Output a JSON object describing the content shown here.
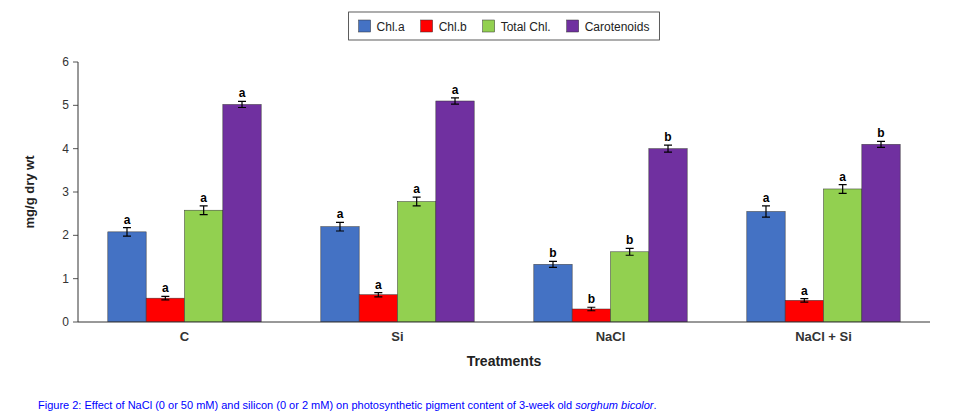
{
  "chart_data": {
    "type": "bar",
    "categories": [
      "C",
      "Si",
      "NaCl",
      "NaCl + Si"
    ],
    "series": [
      {
        "name": "Chl.a",
        "color": "#4472C4",
        "values": [
          2.08,
          2.2,
          1.33,
          2.55
        ],
        "errors": [
          0.1,
          0.1,
          0.07,
          0.13
        ],
        "letters": [
          "a",
          "a",
          "b",
          "a"
        ]
      },
      {
        "name": "Chl.b",
        "color": "#FF0000",
        "values": [
          0.55,
          0.63,
          0.3,
          0.5
        ],
        "errors": [
          0.04,
          0.05,
          0.04,
          0.04
        ],
        "letters": [
          "a",
          "a",
          "b",
          "a"
        ]
      },
      {
        "name": "Total Chl.",
        "color": "#92D050",
        "values": [
          2.58,
          2.78,
          1.62,
          3.07
        ],
        "errors": [
          0.1,
          0.1,
          0.08,
          0.1
        ],
        "letters": [
          "a",
          "a",
          "b",
          "a"
        ]
      },
      {
        "name": "Carotenoids",
        "color": "#7030A0",
        "values": [
          5.02,
          5.1,
          4.0,
          4.1
        ],
        "errors": [
          0.07,
          0.07,
          0.08,
          0.07
        ],
        "letters": [
          "a",
          "a",
          "b",
          "b"
        ]
      }
    ],
    "ylabel": "mg/g dry wt",
    "xlabel": "Treatments",
    "ylim": [
      0,
      6
    ],
    "yticks": [
      0,
      1,
      2,
      3,
      4,
      5,
      6
    ],
    "grid": false,
    "legend": "top",
    "caption": {
      "color": "#0000FF",
      "parts": [
        {
          "text": "Figure 2: Effect of NaCl (0 or 50 mM) and silicon (0 or 2 mM) on photosynthetic pigment content of 3-week old ",
          "italic": false
        },
        {
          "text": "sorghum bicolor",
          "italic": true
        },
        {
          "text": ".",
          "italic": false
        }
      ]
    }
  }
}
